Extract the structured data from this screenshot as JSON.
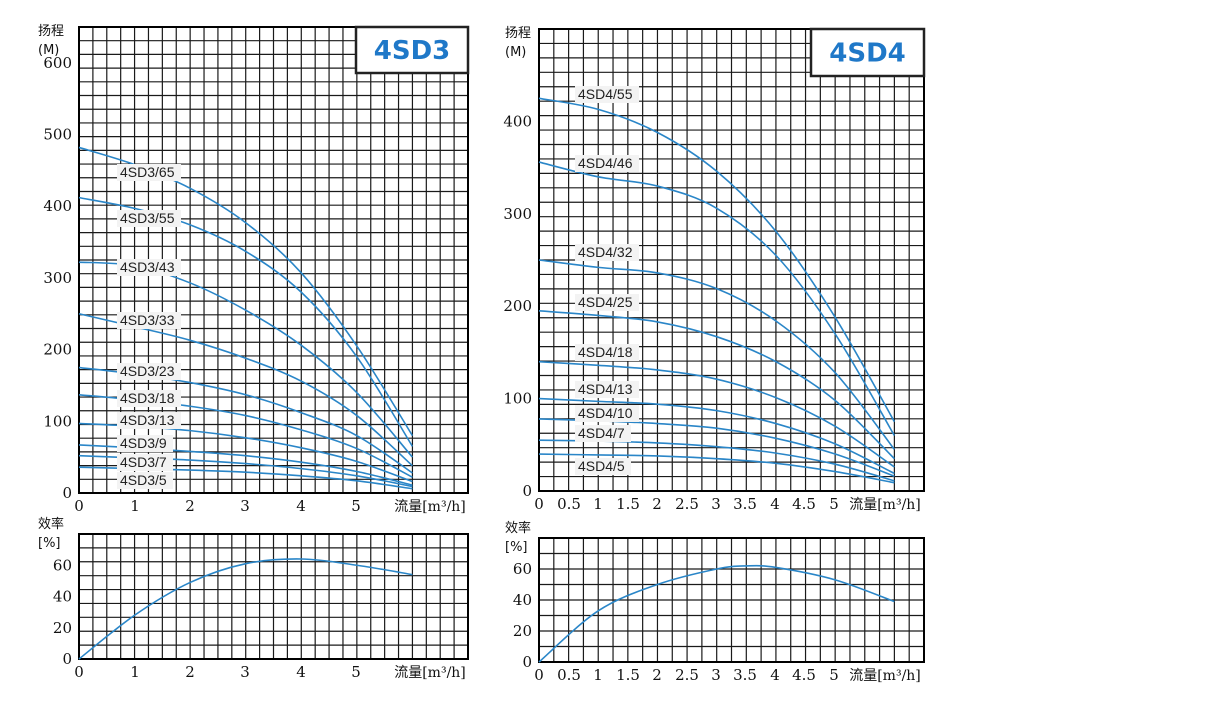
{
  "chart_data": [
    {
      "id": "sd3-head",
      "type": "line",
      "title": "4SD3",
      "ylabel_line1": "扬程",
      "ylabel_line2": "(M)",
      "xlabel": "流量[m³/h]",
      "xlim": [
        0,
        7
      ],
      "ylim": [
        0,
        650
      ],
      "x_ticks": [
        "0",
        "1",
        "2",
        "3",
        "4",
        "5"
      ],
      "y_ticks": [
        "0",
        "100",
        "200",
        "300",
        "400",
        "500",
        "600"
      ],
      "grid": true,
      "line_color": "#2a86c8",
      "series": [
        {
          "name": "4SD3/65",
          "points": [
            [
              0,
              482
            ],
            [
              1,
              458
            ],
            [
              2,
              425
            ],
            [
              3,
              377
            ],
            [
              4,
              307
            ],
            [
              5,
              205
            ],
            [
              6,
              80
            ]
          ]
        },
        {
          "name": "4SD3/55",
          "points": [
            [
              0,
              412
            ],
            [
              1,
              397
            ],
            [
              2,
              374
            ],
            [
              3,
              337
            ],
            [
              4,
              280
            ],
            [
              5,
              190
            ],
            [
              6,
              65
            ]
          ]
        },
        {
          "name": "4SD3/43",
          "points": [
            [
              0,
              322
            ],
            [
              1,
              317
            ],
            [
              2,
              293
            ],
            [
              3,
              255
            ],
            [
              4,
              206
            ],
            [
              5,
              140
            ],
            [
              6,
              50
            ]
          ]
        },
        {
          "name": "4SD3/33",
          "points": [
            [
              0,
              250
            ],
            [
              1,
              232
            ],
            [
              2,
              213
            ],
            [
              3,
              188
            ],
            [
              4,
              156
            ],
            [
              5,
              108
            ],
            [
              6,
              38
            ]
          ]
        },
        {
          "name": "4SD3/23",
          "points": [
            [
              0,
              175
            ],
            [
              1,
              166
            ],
            [
              2,
              154
            ],
            [
              3,
              137
            ],
            [
              4,
              112
            ],
            [
              5,
              80
            ],
            [
              6,
              28
            ]
          ]
        },
        {
          "name": "4SD3/18",
          "points": [
            [
              0,
              137
            ],
            [
              1,
              130
            ],
            [
              2,
              121
            ],
            [
              3,
              108
            ],
            [
              4,
              88
            ],
            [
              5,
              62
            ],
            [
              6,
              22
            ]
          ]
        },
        {
          "name": "4SD3/13",
          "points": [
            [
              0,
              97
            ],
            [
              1,
              93
            ],
            [
              2,
              87
            ],
            [
              3,
              77
            ],
            [
              4,
              63
            ],
            [
              5,
              44
            ],
            [
              6,
              16
            ]
          ]
        },
        {
          "name": "4SD3/9",
          "points": [
            [
              0,
              67
            ],
            [
              1,
              63
            ],
            [
              2,
              58
            ],
            [
              3,
              52
            ],
            [
              4,
              43
            ],
            [
              5,
              30
            ],
            [
              6,
              11
            ]
          ]
        },
        {
          "name": "4SD3/7",
          "points": [
            [
              0,
              52
            ],
            [
              1,
              49
            ],
            [
              2,
              46
            ],
            [
              3,
              41
            ],
            [
              4,
              34
            ],
            [
              5,
              24
            ],
            [
              6,
              9
            ]
          ]
        },
        {
          "name": "4SD3/5",
          "points": [
            [
              0,
              36
            ],
            [
              1,
              34
            ],
            [
              2,
              32
            ],
            [
              3,
              29
            ],
            [
              4,
              24
            ],
            [
              5,
              17
            ],
            [
              6,
              6
            ]
          ]
        }
      ]
    },
    {
      "id": "sd3-eff",
      "type": "line",
      "ylabel_line1": "效率",
      "ylabel_line2": "[%]",
      "xlabel": "流量[m³/h]",
      "xlim": [
        0,
        7
      ],
      "ylim": [
        0,
        80
      ],
      "x_ticks": [
        "0",
        "1",
        "2",
        "3",
        "4",
        "5"
      ],
      "y_ticks": [
        "0",
        "20",
        "40",
        "60"
      ],
      "grid": true,
      "line_color": "#2a86c8",
      "series": [
        {
          "name": "",
          "points": [
            [
              0,
              0
            ],
            [
              1,
              28
            ],
            [
              2,
              49
            ],
            [
              3,
              61
            ],
            [
              4,
              64
            ],
            [
              5,
              60
            ],
            [
              6,
              54
            ]
          ]
        }
      ]
    },
    {
      "id": "sd4-head",
      "type": "line",
      "title": "4SD4",
      "ylabel_line1": "扬程",
      "ylabel_line2": "(M)",
      "xlabel": "流量[m³/h]",
      "xlim": [
        0,
        6.5
      ],
      "ylim": [
        0,
        500
      ],
      "x_ticks": [
        "0",
        "0.5",
        "1",
        "1.5",
        "2",
        "2.5",
        "3",
        "3.5",
        "4",
        "4.5",
        "5"
      ],
      "y_ticks": [
        "0",
        "100",
        "200",
        "300",
        "400"
      ],
      "grid": true,
      "line_color": "#2a86c8",
      "series": [
        {
          "name": "4SD4/55",
          "points": [
            [
              0,
              425
            ],
            [
              1,
              413
            ],
            [
              2,
              388
            ],
            [
              3,
              346
            ],
            [
              4,
              281
            ],
            [
              5,
              188
            ],
            [
              6,
              75
            ]
          ]
        },
        {
          "name": "4SD4/46",
          "points": [
            [
              0,
              356
            ],
            [
              1,
              340
            ],
            [
              2,
              330
            ],
            [
              3,
              306
            ],
            [
              4,
              255
            ],
            [
              5,
              170
            ],
            [
              6,
              60
            ]
          ]
        },
        {
          "name": "4SD4/32",
          "points": [
            [
              0,
              250
            ],
            [
              1,
              242
            ],
            [
              2,
              236
            ],
            [
              3,
              219
            ],
            [
              4,
              184
            ],
            [
              5,
              128
            ],
            [
              6,
              45
            ]
          ]
        },
        {
          "name": "4SD4/25",
          "points": [
            [
              0,
              195
            ],
            [
              1,
              190
            ],
            [
              2,
              183
            ],
            [
              3,
              167
            ],
            [
              4,
              140
            ],
            [
              5,
              98
            ],
            [
              6,
              35
            ]
          ]
        },
        {
          "name": "4SD4/18",
          "points": [
            [
              0,
              140
            ],
            [
              1,
              136
            ],
            [
              2,
              131
            ],
            [
              3,
              121
            ],
            [
              4,
              101
            ],
            [
              5,
              70
            ],
            [
              6,
              26
            ]
          ]
        },
        {
          "name": "4SD4/13",
          "points": [
            [
              0,
              100
            ],
            [
              1,
              97
            ],
            [
              2,
              94
            ],
            [
              3,
              87
            ],
            [
              4,
              73
            ],
            [
              5,
              51
            ],
            [
              6,
              19
            ]
          ]
        },
        {
          "name": "4SD4/10",
          "points": [
            [
              0,
              78
            ],
            [
              1,
              76
            ],
            [
              2,
              73
            ],
            [
              3,
              68
            ],
            [
              4,
              57
            ],
            [
              5,
              40
            ],
            [
              6,
              16
            ]
          ]
        },
        {
          "name": "4SD4/7",
          "points": [
            [
              0,
              55
            ],
            [
              1,
              54
            ],
            [
              2,
              52
            ],
            [
              3,
              48
            ],
            [
              4,
              41
            ],
            [
              5,
              29
            ],
            [
              6,
              11
            ]
          ]
        },
        {
          "name": "4SD4/5",
          "points": [
            [
              0,
              40
            ],
            [
              1,
              39
            ],
            [
              2,
              38
            ],
            [
              3,
              35
            ],
            [
              4,
              30
            ],
            [
              5,
              21
            ],
            [
              6,
              9
            ]
          ]
        }
      ]
    },
    {
      "id": "sd4-eff",
      "type": "line",
      "ylabel_line1": "效率",
      "ylabel_line2": "[%]",
      "xlabel": "流量[m³/h]",
      "xlim": [
        0,
        6.5
      ],
      "ylim": [
        0,
        80
      ],
      "x_ticks": [
        "0",
        "0.5",
        "1",
        "1.5",
        "2",
        "2.5",
        "3",
        "3.5",
        "4",
        "4.5",
        "5"
      ],
      "y_ticks": [
        "0",
        "20",
        "40",
        "60"
      ],
      "grid": true,
      "line_color": "#2a86c8",
      "series": [
        {
          "name": "",
          "points": [
            [
              0,
              0
            ],
            [
              1,
              33
            ],
            [
              2,
              50
            ],
            [
              3,
              60
            ],
            [
              3.5,
              62
            ],
            [
              4,
              61
            ],
            [
              5,
              53
            ],
            [
              6,
              39
            ]
          ]
        }
      ]
    }
  ]
}
